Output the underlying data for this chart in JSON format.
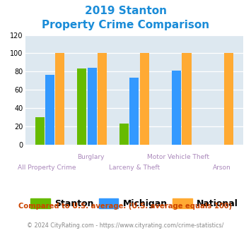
{
  "title_line1": "2019 Stanton",
  "title_line2": "Property Crime Comparison",
  "categories": [
    "All Property Crime",
    "Burglary",
    "Larceny & Theft",
    "Motor Vehicle Theft",
    "Arson"
  ],
  "stanton": [
    30,
    83,
    23,
    0,
    0
  ],
  "michigan": [
    76,
    84,
    73,
    81,
    0
  ],
  "national": [
    100,
    100,
    100,
    100,
    100
  ],
  "stanton_color": "#66bb00",
  "michigan_color": "#3399ff",
  "national_color": "#ffaa33",
  "ylim": [
    0,
    120
  ],
  "yticks": [
    0,
    20,
    40,
    60,
    80,
    100,
    120
  ],
  "xlabel_color": "#aa88bb",
  "title_color": "#1a8cd8",
  "plot_bg_color": "#dde8f0",
  "legend_labels": [
    "Stanton",
    "Michigan",
    "National"
  ],
  "footnote1": "Compared to U.S. average. (U.S. average equals 100)",
  "footnote2": "© 2024 CityRating.com - https://www.cityrating.com/crime-statistics/",
  "footnote1_color": "#cc4400",
  "footnote2_color": "#888888",
  "bar_width": 0.22,
  "xtick_top": [
    "",
    "Burglary",
    "",
    "Motor Vehicle Theft",
    ""
  ],
  "xtick_bot": [
    "All Property Crime",
    "",
    "Larceny & Theft",
    "",
    "Arson"
  ]
}
